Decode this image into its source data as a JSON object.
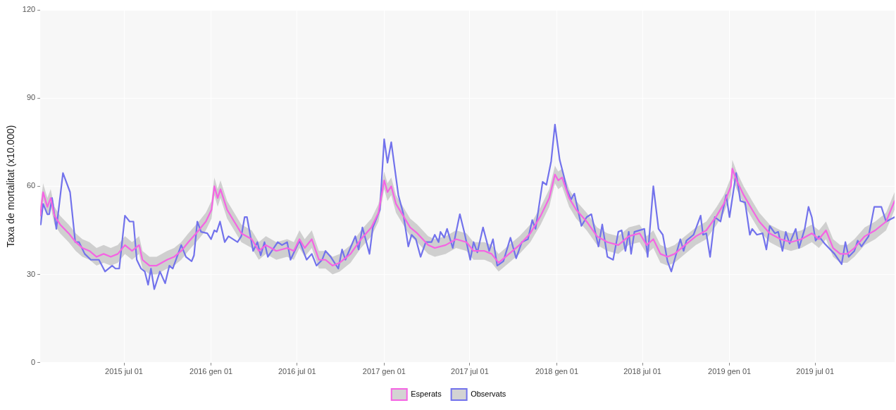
{
  "chart_data": {
    "type": "line",
    "ylabel": "Taxa de mortalitat (x10.000)",
    "xlim": [
      "2015-01-05",
      "2019-12-16"
    ],
    "xticks": [
      {
        "value": "2015-07-01",
        "label": "2015 jul 01"
      },
      {
        "value": "2016-01-01",
        "label": "2016 gen 01"
      },
      {
        "value": "2016-07-01",
        "label": "2016 jul 01"
      },
      {
        "value": "2017-01-01",
        "label": "2017 gen 01"
      },
      {
        "value": "2017-07-01",
        "label": "2017 jul 01"
      },
      {
        "value": "2018-01-01",
        "label": "2018 gen 01"
      },
      {
        "value": "2018-07-01",
        "label": "2018 jul 01"
      },
      {
        "value": "2019-01-01",
        "label": "2019 gen 01"
      },
      {
        "value": "2019-07-01",
        "label": "2019 jul 01"
      }
    ],
    "ylim": [
      0,
      120
    ],
    "yticks": [
      0,
      30,
      60,
      90,
      120
    ],
    "grid": true,
    "legend": "bottom",
    "marker": "none",
    "line_style": "solid",
    "series": [
      {
        "name": "Esperats",
        "color": "#f564e3",
        "x": [
          "2015-01-05",
          "2015-01-11",
          "2015-01-20",
          "2015-01-27",
          "2015-02-04",
          "2015-02-16",
          "2015-03-06",
          "2015-03-21",
          "2015-04-04",
          "2015-04-19",
          "2015-05-04",
          "2015-05-19",
          "2015-06-03",
          "2015-06-18",
          "2015-07-03",
          "2015-07-18",
          "2015-08-02",
          "2015-08-09",
          "2015-08-24",
          "2015-09-08",
          "2015-09-30",
          "2015-10-15",
          "2015-10-30",
          "2015-11-14",
          "2015-12-06",
          "2015-12-21",
          "2016-01-02",
          "2016-01-08",
          "2016-01-15",
          "2016-01-21",
          "2016-02-04",
          "2016-02-19",
          "2016-03-05",
          "2016-03-27",
          "2016-04-11",
          "2016-04-26",
          "2016-05-18",
          "2016-06-10",
          "2016-06-24",
          "2016-07-06",
          "2016-07-17",
          "2016-08-01",
          "2016-08-16",
          "2016-08-30",
          "2016-09-14",
          "2016-09-29",
          "2016-10-22",
          "2016-11-13",
          "2016-12-05",
          "2016-12-20",
          "2017-01-01",
          "2017-01-08",
          "2017-01-16",
          "2017-01-26",
          "2017-02-10",
          "2017-02-25",
          "2017-03-12",
          "2017-04-04",
          "2017-04-18",
          "2017-05-11",
          "2017-06-02",
          "2017-06-24",
          "2017-07-09",
          "2017-08-01",
          "2017-08-16",
          "2017-08-31",
          "2017-09-22",
          "2017-10-14",
          "2017-11-06",
          "2017-11-28",
          "2017-12-16",
          "2017-12-28",
          "2018-01-04",
          "2018-01-12",
          "2018-01-27",
          "2018-02-11",
          "2018-03-05",
          "2018-03-27",
          "2018-04-18",
          "2018-05-11",
          "2018-06-02",
          "2018-06-25",
          "2018-07-10",
          "2018-07-24",
          "2018-08-08",
          "2018-08-23",
          "2018-09-07",
          "2018-09-29",
          "2018-10-22",
          "2018-11-13",
          "2018-12-05",
          "2018-12-20",
          "2019-01-04",
          "2019-01-07",
          "2019-01-16",
          "2019-01-31",
          "2019-02-18",
          "2019-03-05",
          "2019-03-27",
          "2019-04-19",
          "2019-05-11",
          "2019-06-02",
          "2019-06-24",
          "2019-07-09",
          "2019-07-24",
          "2019-08-08",
          "2019-08-23",
          "2019-09-07",
          "2019-09-22",
          "2019-10-14",
          "2019-11-05",
          "2019-11-28",
          "2019-12-16"
        ],
        "values": [
          50,
          58,
          53,
          56,
          50,
          47,
          44,
          41,
          39,
          38,
          36,
          37,
          36,
          37,
          40,
          38,
          40,
          35,
          33,
          33,
          35,
          36,
          38,
          41,
          45,
          48,
          52,
          60,
          56,
          59,
          52,
          48,
          44,
          42,
          38,
          40,
          38,
          39,
          38,
          42,
          39,
          42,
          35,
          35,
          33,
          34,
          37,
          42,
          46,
          51,
          62,
          58,
          60,
          54,
          50,
          46,
          44,
          40,
          39,
          40,
          42,
          41,
          38,
          38,
          37,
          34,
          37,
          40,
          44,
          50,
          56,
          64,
          62,
          63,
          56,
          52,
          48,
          43,
          41,
          40,
          43,
          44,
          40,
          42,
          37,
          36,
          37,
          40,
          43,
          45,
          50,
          54,
          60,
          66,
          62,
          57,
          52,
          48,
          44,
          42,
          41,
          42,
          44,
          42,
          45,
          39,
          37,
          37,
          39,
          43,
          45,
          48,
          55
        ],
        "lower": [
          47,
          55,
          50,
          53,
          47,
          44,
          41,
          38,
          36,
          35,
          33,
          34,
          33,
          34,
          37,
          35,
          37,
          32,
          30,
          30,
          32,
          33,
          35,
          38,
          42,
          45,
          49,
          57,
          53,
          56,
          49,
          45,
          41,
          39,
          35,
          37,
          35,
          36,
          35,
          39,
          36,
          39,
          32,
          32,
          30,
          31,
          34,
          39,
          43,
          48,
          59,
          55,
          57,
          51,
          47,
          43,
          41,
          37,
          36,
          37,
          39,
          38,
          35,
          35,
          34,
          31,
          34,
          37,
          41,
          47,
          53,
          61,
          59,
          60,
          53,
          49,
          45,
          40,
          38,
          37,
          40,
          41,
          37,
          39,
          34,
          33,
          34,
          37,
          40,
          42,
          47,
          51,
          57,
          63,
          59,
          54,
          49,
          45,
          41,
          39,
          38,
          39,
          41,
          39,
          42,
          36,
          34,
          34,
          36,
          40,
          42,
          45,
          52
        ],
        "upper": [
          53,
          61,
          56,
          59,
          53,
          50,
          47,
          44,
          42,
          41,
          39,
          40,
          39,
          40,
          43,
          41,
          43,
          38,
          36,
          36,
          38,
          39,
          41,
          44,
          48,
          51,
          55,
          63,
          59,
          62,
          55,
          51,
          47,
          45,
          41,
          43,
          41,
          42,
          41,
          45,
          42,
          45,
          38,
          38,
          36,
          37,
          40,
          45,
          49,
          54,
          65,
          61,
          63,
          57,
          53,
          49,
          47,
          43,
          42,
          43,
          45,
          44,
          41,
          41,
          40,
          37,
          40,
          43,
          47,
          53,
          59,
          67,
          65,
          66,
          59,
          55,
          51,
          46,
          44,
          43,
          46,
          47,
          43,
          45,
          40,
          39,
          40,
          43,
          46,
          48,
          53,
          57,
          63,
          69,
          65,
          60,
          55,
          51,
          47,
          45,
          44,
          45,
          47,
          45,
          48,
          42,
          40,
          40,
          42,
          46,
          48,
          51,
          58
        ]
      },
      {
        "name": "Observats",
        "color": "#7272ec",
        "x": [
          "2015-01-06",
          "2015-01-11",
          "2015-01-20",
          "2015-01-24",
          "2015-01-30",
          "2015-02-08",
          "2015-02-22",
          "2015-03-09",
          "2015-03-20",
          "2015-03-28",
          "2015-04-09",
          "2015-04-22",
          "2015-05-04",
          "2015-05-09",
          "2015-05-22",
          "2015-06-06",
          "2015-06-13",
          "2015-06-21",
          "2015-07-03",
          "2015-07-13",
          "2015-07-21",
          "2015-07-28",
          "2015-08-06",
          "2015-08-14",
          "2015-08-21",
          "2015-08-27",
          "2015-09-03",
          "2015-09-15",
          "2015-09-26",
          "2015-10-05",
          "2015-10-12",
          "2015-10-30",
          "2015-11-09",
          "2015-11-21",
          "2015-11-26",
          "2015-12-03",
          "2015-12-11",
          "2015-12-24",
          "2016-01-01",
          "2016-01-08",
          "2016-01-13",
          "2016-01-20",
          "2016-01-30",
          "2016-02-07",
          "2016-02-26",
          "2016-03-05",
          "2016-03-12",
          "2016-03-17",
          "2016-03-30",
          "2016-04-08",
          "2016-04-15",
          "2016-04-23",
          "2016-04-30",
          "2016-05-21",
          "2016-05-30",
          "2016-06-10",
          "2016-06-17",
          "2016-07-06",
          "2016-07-21",
          "2016-08-01",
          "2016-08-11",
          "2016-08-23",
          "2016-08-30",
          "2016-09-10",
          "2016-09-26",
          "2016-10-04",
          "2016-10-11",
          "2016-11-01",
          "2016-11-08",
          "2016-11-16",
          "2016-12-01",
          "2016-12-08",
          "2016-12-23",
          "2017-01-01",
          "2017-01-08",
          "2017-01-16",
          "2017-01-31",
          "2017-02-10",
          "2017-02-21",
          "2017-02-28",
          "2017-03-09",
          "2017-03-19",
          "2017-03-30",
          "2017-04-11",
          "2017-04-18",
          "2017-04-26",
          "2017-04-30",
          "2017-05-08",
          "2017-05-14",
          "2017-05-26",
          "2017-06-10",
          "2017-06-20",
          "2017-07-02",
          "2017-07-09",
          "2017-07-17",
          "2017-07-29",
          "2017-08-11",
          "2017-08-19",
          "2017-08-28",
          "2017-09-10",
          "2017-09-25",
          "2017-10-07",
          "2017-10-19",
          "2017-11-01",
          "2017-11-10",
          "2017-11-17",
          "2017-12-02",
          "2017-12-10",
          "2017-12-20",
          "2017-12-28",
          "2018-01-07",
          "2018-01-15",
          "2018-01-22",
          "2018-01-31",
          "2018-02-07",
          "2018-02-22",
          "2018-03-05",
          "2018-03-15",
          "2018-03-30",
          "2018-04-07",
          "2018-04-18",
          "2018-04-30",
          "2018-05-11",
          "2018-05-18",
          "2018-05-26",
          "2018-06-02",
          "2018-06-07",
          "2018-06-14",
          "2018-07-05",
          "2018-07-12",
          "2018-07-24",
          "2018-08-04",
          "2018-08-13",
          "2018-08-23",
          "2018-08-31",
          "2018-09-19",
          "2018-09-26",
          "2018-10-02",
          "2018-10-17",
          "2018-11-01",
          "2018-11-06",
          "2018-11-13",
          "2018-11-21",
          "2018-12-01",
          "2018-12-13",
          "2018-12-25",
          "2019-01-01",
          "2019-01-15",
          "2019-01-24",
          "2019-02-03",
          "2019-02-13",
          "2019-02-18",
          "2019-02-28",
          "2019-03-12",
          "2019-03-20",
          "2019-03-27",
          "2019-04-07",
          "2019-04-14",
          "2019-04-23",
          "2019-04-30",
          "2019-05-08",
          "2019-05-21",
          "2019-05-28",
          "2019-06-09",
          "2019-06-17",
          "2019-06-24",
          "2019-07-02",
          "2019-07-09",
          "2019-07-21",
          "2019-08-11",
          "2019-08-26",
          "2019-09-03",
          "2019-09-10",
          "2019-09-22",
          "2019-09-29",
          "2019-10-07",
          "2019-10-22",
          "2019-11-03",
          "2019-11-18",
          "2019-11-28",
          "2019-12-16"
        ],
        "values": [
          47,
          54,
          50.5,
          50.5,
          56,
          45.5,
          64.5,
          58,
          41,
          41,
          37,
          35,
          35,
          35,
          31,
          33,
          32,
          32,
          50,
          48,
          48,
          35,
          32,
          31,
          26.5,
          32,
          25,
          31,
          27,
          33,
          32,
          40,
          36,
          34.5,
          36.5,
          48,
          44.5,
          44,
          42,
          45,
          44.5,
          48,
          41,
          43,
          41,
          43,
          49.5,
          49.5,
          38,
          41,
          36.5,
          41,
          36,
          41,
          40,
          41,
          35,
          41.5,
          35,
          37,
          33,
          35,
          38,
          36,
          32,
          38.5,
          35,
          43,
          38.5,
          46,
          37,
          46,
          52,
          76,
          68,
          75,
          57,
          51,
          39.5,
          43.5,
          42,
          36,
          41,
          41,
          43.5,
          41,
          44.5,
          42.5,
          45.5,
          39,
          50.5,
          44,
          35,
          41,
          37.5,
          46,
          38,
          42,
          33,
          34.5,
          42.5,
          35.5,
          41,
          42,
          48.5,
          45.5,
          61.5,
          60.5,
          68.5,
          81,
          69,
          64,
          59,
          55.5,
          57.5,
          46.5,
          49.5,
          50.5,
          39.5,
          47,
          36,
          35,
          44.5,
          45,
          38,
          44.5,
          37,
          44.5,
          45.5,
          36,
          60,
          45.5,
          43.5,
          34.5,
          31,
          42,
          38,
          41.5,
          43.5,
          50,
          43.5,
          44,
          36,
          49.5,
          48,
          57,
          49.5,
          64.5,
          55,
          54.5,
          43.5,
          45.5,
          43.5,
          44,
          38.5,
          46.5,
          44,
          44.5,
          38,
          44.5,
          40.5,
          45.5,
          39,
          45.5,
          53,
          49.5,
          41.5,
          43,
          40.5,
          37,
          33.5,
          41,
          36,
          38,
          41.5,
          39.5,
          43,
          53,
          53,
          48,
          49.5
        ]
      }
    ]
  }
}
